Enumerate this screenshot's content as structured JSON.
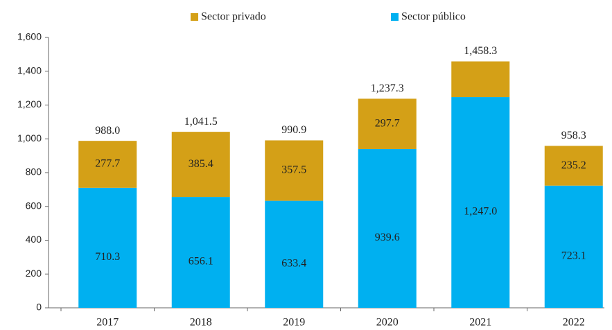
{
  "chart_data": {
    "type": "stacked_bar",
    "categories": [
      "2017",
      "2018",
      "2019",
      "2020",
      "2021",
      "2022"
    ],
    "series": [
      {
        "name": "Sector público",
        "color": "#00b0f0",
        "values": [
          710.3,
          656.1,
          633.4,
          939.6,
          1247.0,
          723.1
        ],
        "value_labels": [
          "710.3",
          "656.1",
          "633.4",
          "939.6",
          "1,247.0",
          "723.1"
        ]
      },
      {
        "name": "Sector privado",
        "color": "#d4a017",
        "values": [
          277.7,
          385.4,
          357.5,
          297.7,
          211.3,
          235.2
        ],
        "value_labels": [
          "277.7",
          "385.4",
          "357.5",
          "297.7",
          null,
          "235.2"
        ]
      }
    ],
    "total_labels": [
      "988.0",
      "1,041.5",
      "990.9",
      "1,237.3",
      "1,458.3",
      "958.3"
    ],
    "ylim": [
      0,
      1600
    ],
    "yticks": [
      0,
      200,
      400,
      600,
      800,
      {
        "value": 1000,
        "label": "1,000"
      },
      {
        "value": 1200,
        "label": "1,200"
      },
      {
        "value": 1400,
        "label": "1,400"
      },
      {
        "value": 1600,
        "label": "1,600"
      }
    ],
    "grid": false
  }
}
